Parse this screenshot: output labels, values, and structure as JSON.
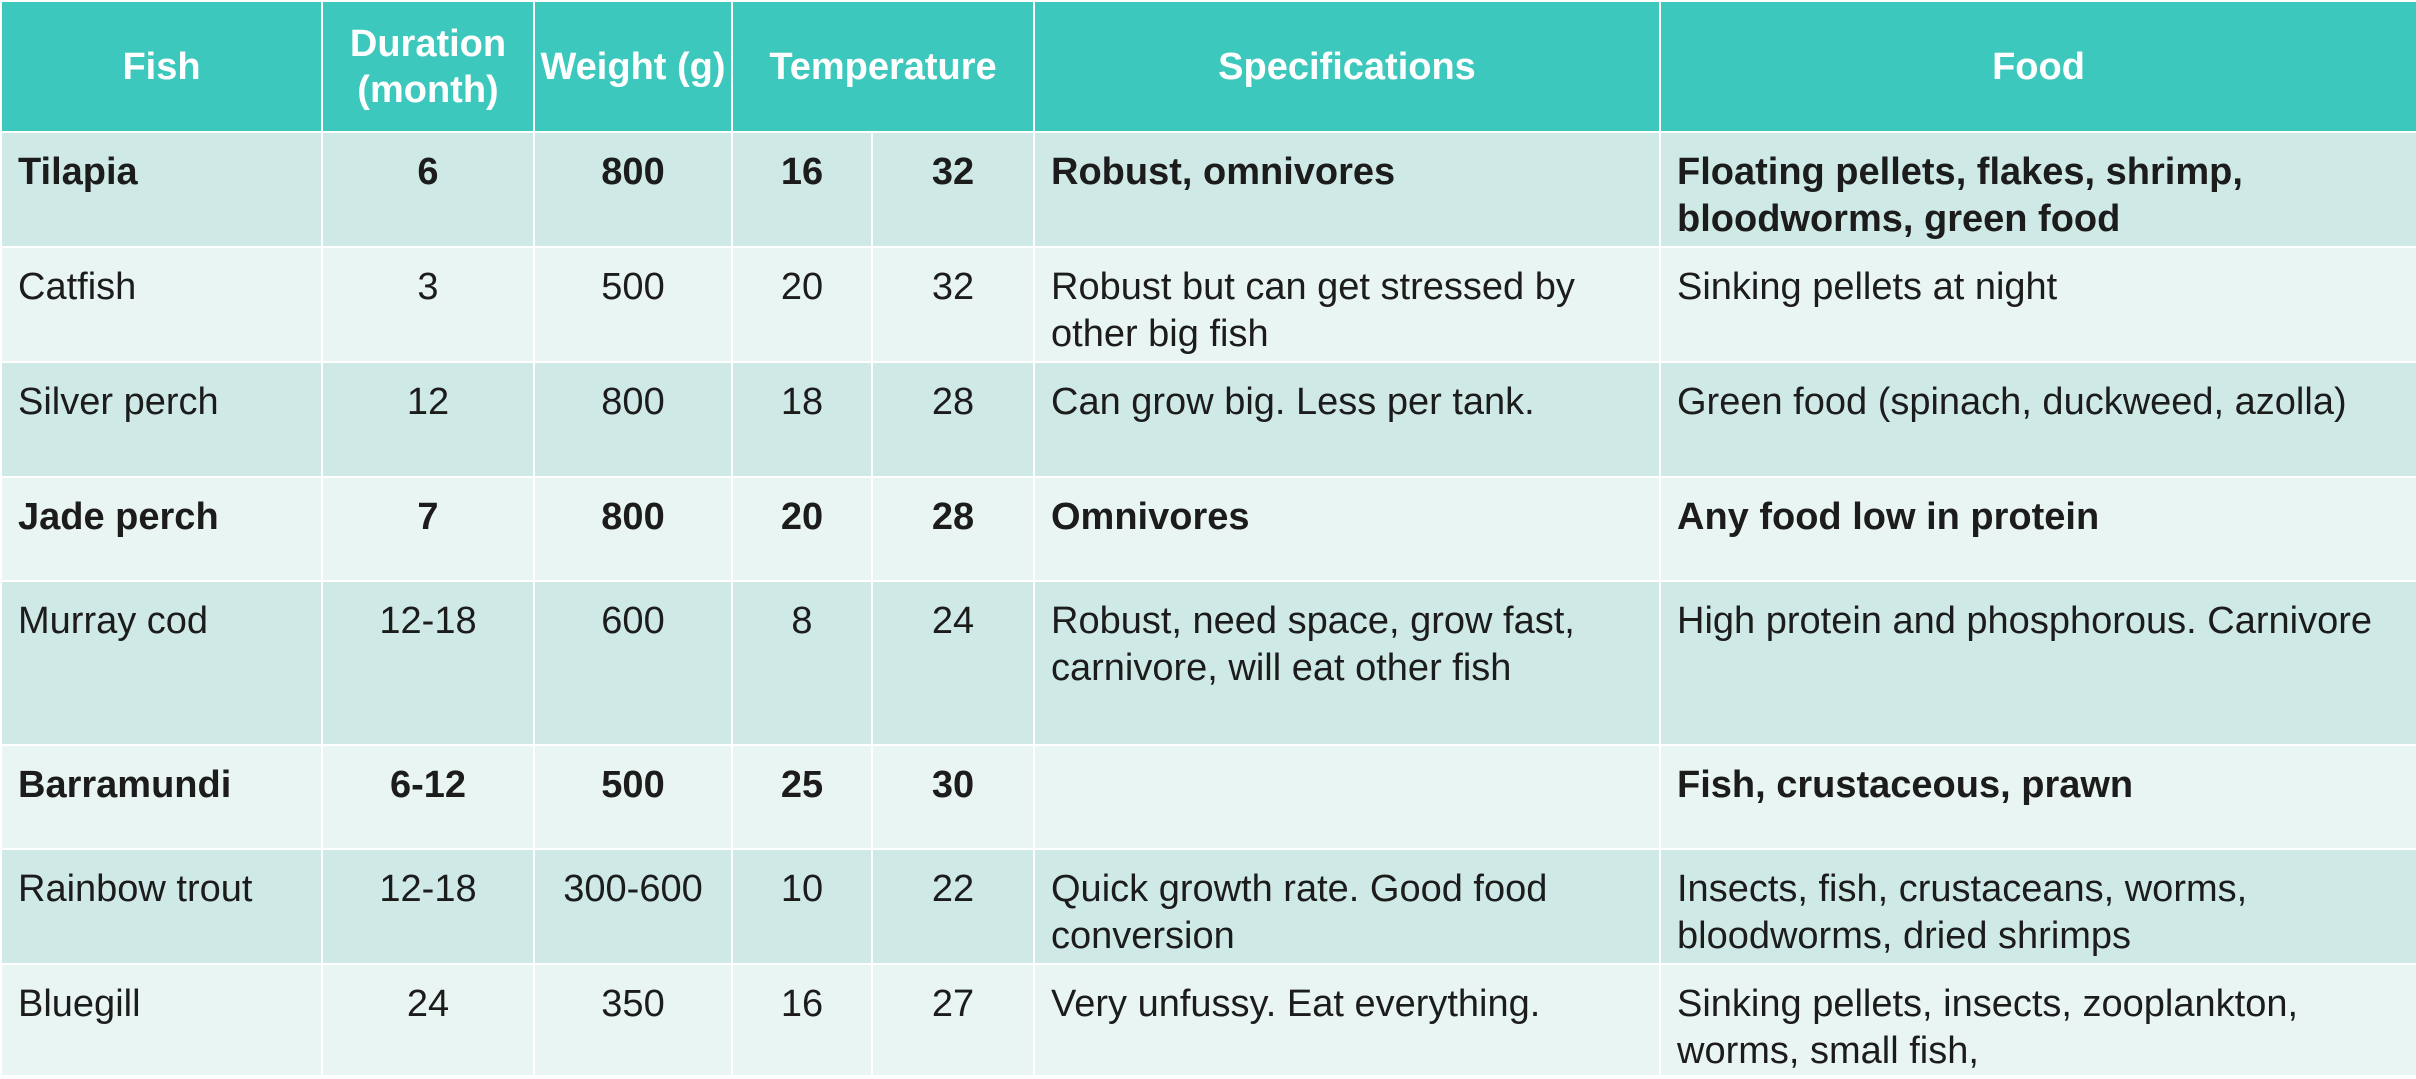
{
  "table": {
    "headers": {
      "fish": "Fish",
      "duration": "Duration (month)",
      "weight": "Weight (g)",
      "temperature": "Temperature",
      "specifications": "Specifications",
      "food": "Food"
    },
    "rows": [
      {
        "fish": "Tilapia",
        "duration": "6",
        "weight": "800",
        "temp_min": "16",
        "temp_max": "32",
        "specifications": "Robust, omnivores",
        "food": "Floating pellets, flakes, shrimp, bloodworms, green food",
        "bold": true
      },
      {
        "fish": "Catfish",
        "duration": "3",
        "weight": "500",
        "temp_min": "20",
        "temp_max": "32",
        "specifications": "Robust but can get stressed by other big fish",
        "food": "Sinking pellets at night",
        "bold": false
      },
      {
        "fish": "Silver perch",
        "duration": "12",
        "weight": "800",
        "temp_min": "18",
        "temp_max": "28",
        "specifications": "Can grow big. Less per tank.",
        "food": "Green food (spinach, duckweed, azolla)",
        "bold": false
      },
      {
        "fish": "Jade perch",
        "duration": "7",
        "weight": "800",
        "temp_min": "20",
        "temp_max": "28",
        "specifications": "Omnivores",
        "food": "Any food low in protein",
        "bold": true
      },
      {
        "fish": "Murray cod",
        "duration": "12-18",
        "weight": "600",
        "temp_min": "8",
        "temp_max": "24",
        "specifications": "Robust, need space, grow fast, carnivore, will eat other fish",
        "food": "High protein and phosphorous. Carnivore",
        "bold": false
      },
      {
        "fish": "Barramundi",
        "duration": "6-12",
        "weight": "500",
        "temp_min": "25",
        "temp_max": "30",
        "specifications": "",
        "food": "Fish, crustaceous, prawn",
        "bold": true
      },
      {
        "fish": "Rainbow trout",
        "duration": "12-18",
        "weight": "300-600",
        "temp_min": "10",
        "temp_max": "22",
        "specifications": "Quick growth rate. Good food conversion",
        "food": "Insects, fish, crustaceans, worms, bloodworms, dried shrimps",
        "bold": false
      },
      {
        "fish": "Bluegill",
        "duration": "24",
        "weight": "350",
        "temp_min": "16",
        "temp_max": "27",
        "specifications": "Very unfussy. Eat everything.",
        "food": "Sinking pellets, insects, zooplankton, worms, small fish,",
        "bold": false
      }
    ]
  }
}
